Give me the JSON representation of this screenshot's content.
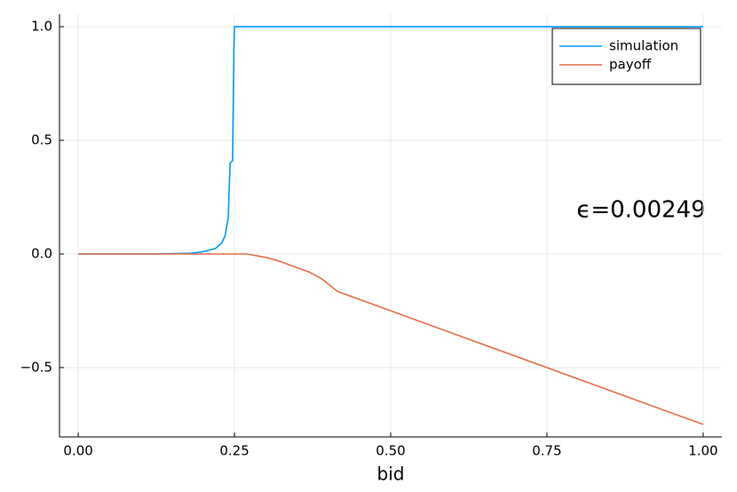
{
  "chart_data": {
    "type": "line",
    "x_label": "bid",
    "annotation": "ϵ=0.00249",
    "x": [
      0,
      0.12,
      0.18,
      0.2,
      0.22,
      0.23,
      0.235,
      0.24,
      0.243,
      0.247,
      0.249,
      0.25,
      0.27,
      0.3,
      0.32,
      0.35,
      0.37,
      0.39,
      0.415,
      1.0
    ],
    "series": [
      {
        "name": "simulation",
        "color": "#009af9",
        "values": [
          0,
          0,
          0.003,
          0.01,
          0.025,
          0.05,
          0.08,
          0.16,
          0.4,
          0.41,
          0.9,
          1,
          1,
          1,
          1,
          1,
          1,
          1,
          1,
          1
        ]
      },
      {
        "name": "payoff",
        "color": "#e26f46",
        "values": [
          0,
          0,
          0,
          0,
          0,
          0,
          0,
          0,
          0,
          0,
          0,
          0,
          0,
          -0.015,
          -0.03,
          -0.06,
          -0.08,
          -0.11,
          -0.165,
          -0.75
        ]
      }
    ],
    "xlim": [
      -0.03,
      1.03
    ],
    "ylim": [
      -0.805,
      1.055
    ],
    "xticks": [
      {
        "value": 0,
        "label": "0.00"
      },
      0.25,
      {
        "value": 0.5,
        "label": "0.50"
      },
      0.75,
      {
        "value": 1,
        "label": "1.00"
      }
    ],
    "yticks": [
      {
        "value": -0.5,
        "label": "−0.5"
      },
      {
        "value": 0,
        "label": "0.0"
      },
      0.5,
      {
        "value": 1,
        "label": "1.0"
      }
    ],
    "grid": true,
    "legend": "top-right"
  }
}
